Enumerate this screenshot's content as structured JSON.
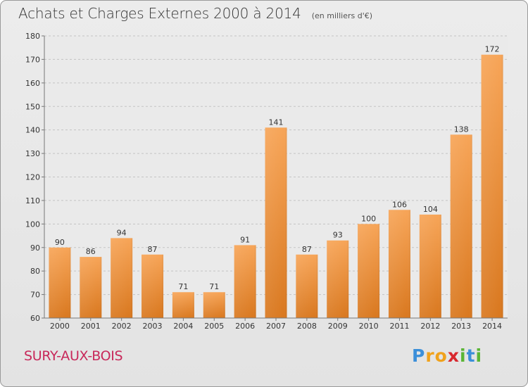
{
  "chart_data": {
    "type": "bar",
    "title": "Achats et Charges Externes 2000 à 2014",
    "unit_note": "(en milliers d'€)",
    "categories": [
      "2000",
      "2001",
      "2002",
      "2003",
      "2004",
      "2005",
      "2006",
      "2007",
      "2008",
      "2009",
      "2010",
      "2011",
      "2012",
      "2013",
      "2014"
    ],
    "values": [
      90,
      86,
      94,
      87,
      71,
      71,
      91,
      141,
      87,
      93,
      100,
      106,
      104,
      138,
      172
    ],
    "ylim": [
      60,
      180
    ],
    "yticks": [
      60,
      70,
      80,
      90,
      100,
      110,
      120,
      130,
      140,
      150,
      160,
      170,
      180
    ],
    "grid": true,
    "bar_color_top": "#f7a558",
    "bar_color_bottom": "#d9781f"
  },
  "commune": "SURY-AUX-BOIS",
  "brand": {
    "letters": [
      "P",
      "r",
      "o",
      "x",
      "i",
      "t",
      "i"
    ],
    "colors": [
      "#3b8fd9",
      "#f0a21c",
      "#f0a21c",
      "#d8282e",
      "#5ab535",
      "#3b8fd9",
      "#5ab535"
    ]
  }
}
